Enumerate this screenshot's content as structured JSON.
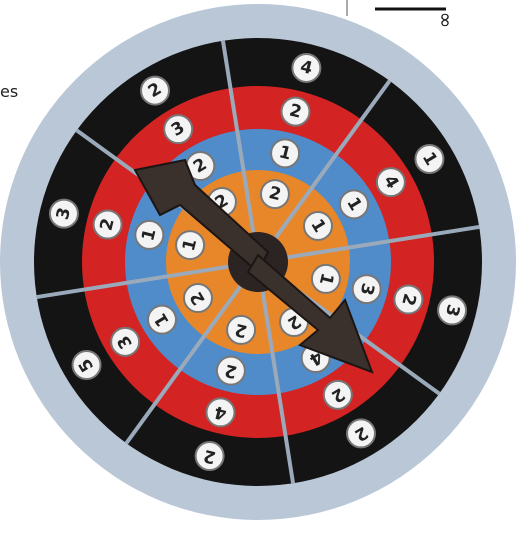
{
  "fragments": {
    "left_text": "es",
    "corner_symbol": "∞"
  },
  "wheel": {
    "outer_ring": [
      4,
      1,
      3,
      2,
      2,
      5,
      3,
      2
    ],
    "red_ring": [
      2,
      4,
      2,
      2,
      4,
      3,
      2,
      3
    ],
    "blue_ring": [
      1,
      1,
      3,
      4,
      2,
      1,
      1,
      2
    ],
    "orange_ring": [
      2,
      1,
      1,
      2,
      2,
      2,
      1,
      2
    ]
  }
}
